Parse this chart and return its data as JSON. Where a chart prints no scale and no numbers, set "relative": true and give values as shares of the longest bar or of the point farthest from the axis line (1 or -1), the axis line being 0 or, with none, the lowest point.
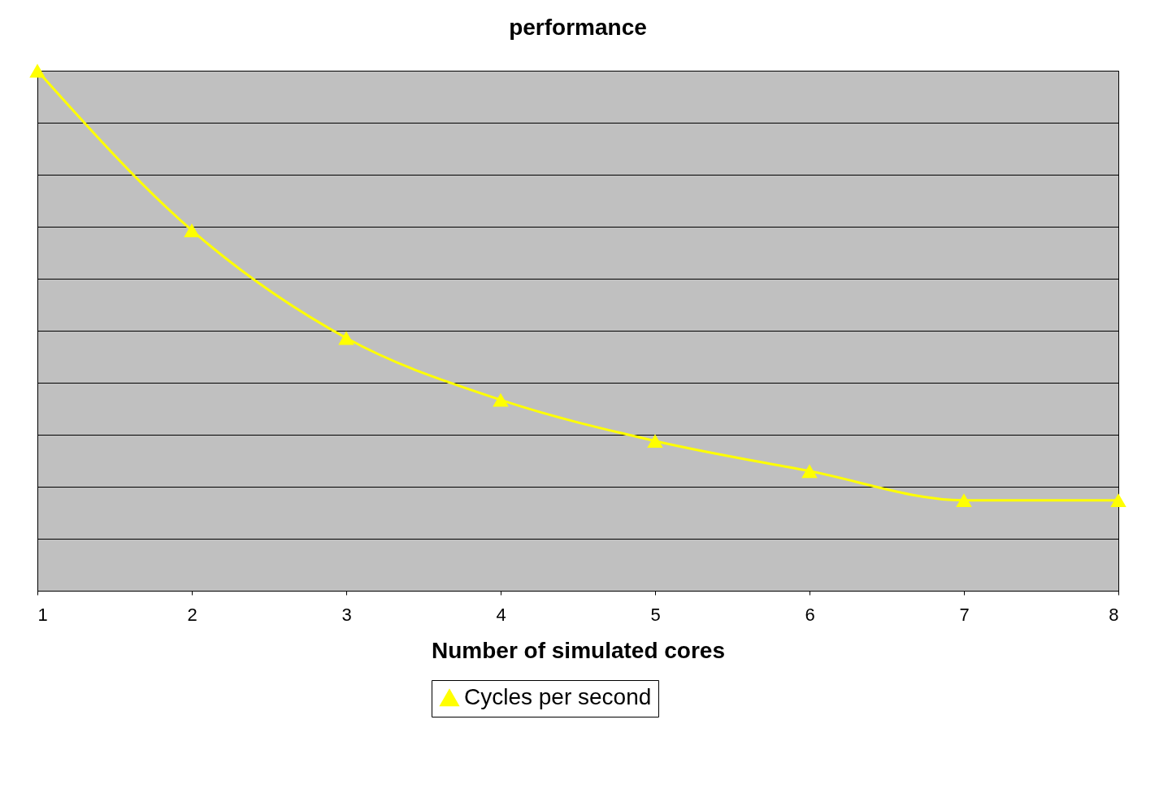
{
  "chart_data": {
    "type": "line",
    "title": "performance",
    "xlabel": "Number of simulated cores",
    "x": [
      1,
      2,
      3,
      4,
      5,
      6,
      7,
      8
    ],
    "xlim": [
      1,
      8
    ],
    "xticks": [
      1,
      2,
      3,
      4,
      5,
      6,
      7,
      8
    ],
    "relative": true,
    "series": [
      {
        "name": "Cycles per second",
        "color": "#ffff00",
        "values": [
          1,
          0.693,
          0.486,
          0.367,
          0.288,
          0.23,
          0.174,
          0.174
        ]
      }
    ],
    "marker": "triangle",
    "line_style": "solid",
    "grid": "y",
    "legend": "bottom"
  }
}
